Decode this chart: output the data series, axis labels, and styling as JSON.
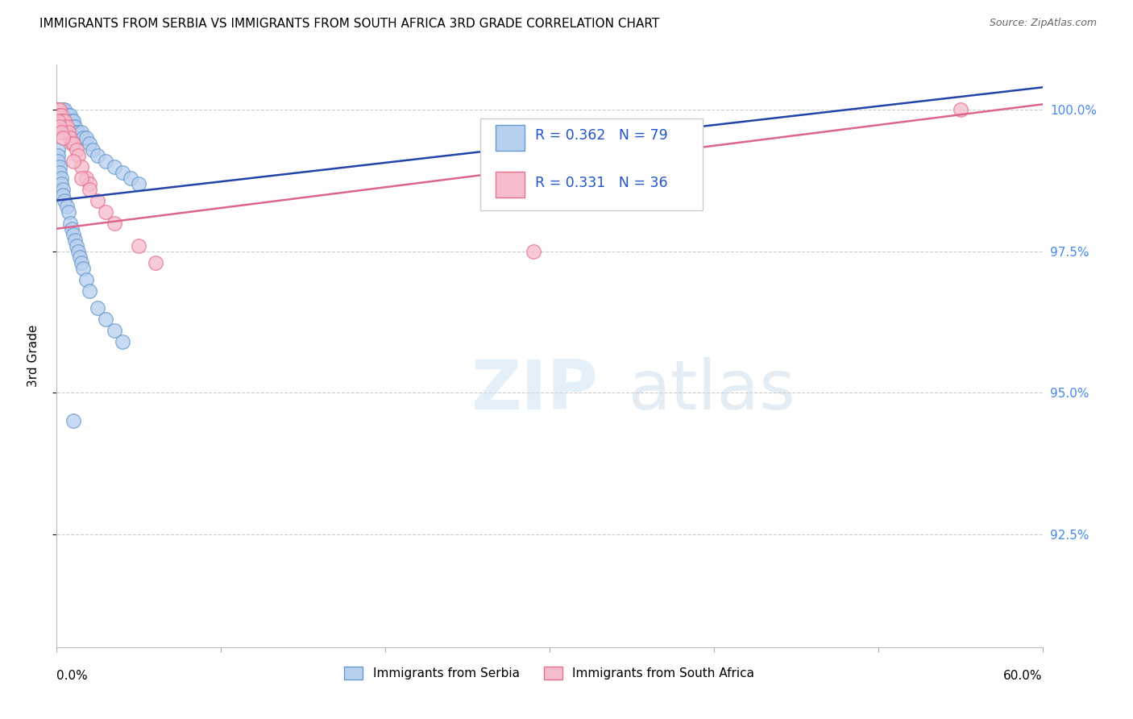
{
  "title": "IMMIGRANTS FROM SERBIA VS IMMIGRANTS FROM SOUTH AFRICA 3RD GRADE CORRELATION CHART",
  "source": "Source: ZipAtlas.com",
  "ylabel": "3rd Grade",
  "ytick_labels": [
    "100.0%",
    "97.5%",
    "95.0%",
    "92.5%"
  ],
  "ytick_values": [
    1.0,
    0.975,
    0.95,
    0.925
  ],
  "xmin": 0.0,
  "xmax": 0.6,
  "ymin": 0.905,
  "ymax": 1.008,
  "legend1_label": "R = 0.362   N = 79",
  "legend2_label": "R = 0.331   N = 36",
  "serbia_color": "#b8d0f0",
  "south_africa_color": "#f5bccb",
  "serbia_edge_color": "#6699cc",
  "south_africa_edge_color": "#e87090",
  "serbia_line_color": "#2244aa",
  "south_africa_line_color": "#dd6688",
  "serbia_line_x0": 0.0,
  "serbia_line_x1": 0.6,
  "serbia_line_y0": 0.984,
  "serbia_line_y1": 1.004,
  "sa_line_x0": 0.0,
  "sa_line_x1": 0.6,
  "sa_line_y0": 0.979,
  "sa_line_y1": 1.001,
  "serbia_x": [
    0.001,
    0.001,
    0.001,
    0.001,
    0.001,
    0.001,
    0.001,
    0.001,
    0.002,
    0.002,
    0.002,
    0.002,
    0.002,
    0.002,
    0.003,
    0.003,
    0.003,
    0.003,
    0.003,
    0.004,
    0.004,
    0.004,
    0.004,
    0.005,
    0.005,
    0.005,
    0.006,
    0.006,
    0.006,
    0.007,
    0.007,
    0.008,
    0.008,
    0.009,
    0.009,
    0.01,
    0.01,
    0.011,
    0.012,
    0.013,
    0.015,
    0.016,
    0.018,
    0.02,
    0.022,
    0.025,
    0.03,
    0.035,
    0.04,
    0.045,
    0.05,
    0.001,
    0.001,
    0.001,
    0.002,
    0.002,
    0.003,
    0.003,
    0.004,
    0.004,
    0.005,
    0.006,
    0.007,
    0.008,
    0.009,
    0.01,
    0.011,
    0.012,
    0.013,
    0.014,
    0.015,
    0.016,
    0.018,
    0.02,
    0.025,
    0.03,
    0.035,
    0.04,
    0.01
  ],
  "serbia_y": [
    1.0,
    1.0,
    1.0,
    1.0,
    1.0,
    0.999,
    0.999,
    0.998,
    1.0,
    1.0,
    0.999,
    0.999,
    0.998,
    0.998,
    1.0,
    0.999,
    0.999,
    0.998,
    0.997,
    1.0,
    0.999,
    0.998,
    0.997,
    1.0,
    0.999,
    0.998,
    0.999,
    0.998,
    0.997,
    0.999,
    0.998,
    0.999,
    0.997,
    0.998,
    0.997,
    0.998,
    0.997,
    0.997,
    0.996,
    0.996,
    0.996,
    0.995,
    0.995,
    0.994,
    0.993,
    0.992,
    0.991,
    0.99,
    0.989,
    0.988,
    0.987,
    0.993,
    0.992,
    0.991,
    0.99,
    0.989,
    0.988,
    0.987,
    0.986,
    0.985,
    0.984,
    0.983,
    0.982,
    0.98,
    0.979,
    0.978,
    0.977,
    0.976,
    0.975,
    0.974,
    0.973,
    0.972,
    0.97,
    0.968,
    0.965,
    0.963,
    0.961,
    0.959,
    0.945
  ],
  "south_africa_x": [
    0.001,
    0.001,
    0.001,
    0.002,
    0.002,
    0.002,
    0.003,
    0.003,
    0.004,
    0.004,
    0.005,
    0.005,
    0.006,
    0.007,
    0.008,
    0.009,
    0.01,
    0.012,
    0.013,
    0.015,
    0.018,
    0.02,
    0.025,
    0.03,
    0.035,
    0.05,
    0.06,
    0.001,
    0.002,
    0.003,
    0.004,
    0.01,
    0.015,
    0.29,
    0.55,
    0.02
  ],
  "south_africa_y": [
    1.0,
    1.0,
    0.999,
    1.0,
    0.999,
    0.999,
    0.999,
    0.998,
    0.998,
    0.997,
    0.998,
    0.997,
    0.997,
    0.996,
    0.995,
    0.994,
    0.994,
    0.993,
    0.992,
    0.99,
    0.988,
    0.987,
    0.984,
    0.982,
    0.98,
    0.976,
    0.973,
    0.998,
    0.997,
    0.996,
    0.995,
    0.991,
    0.988,
    0.975,
    1.0,
    0.986
  ]
}
